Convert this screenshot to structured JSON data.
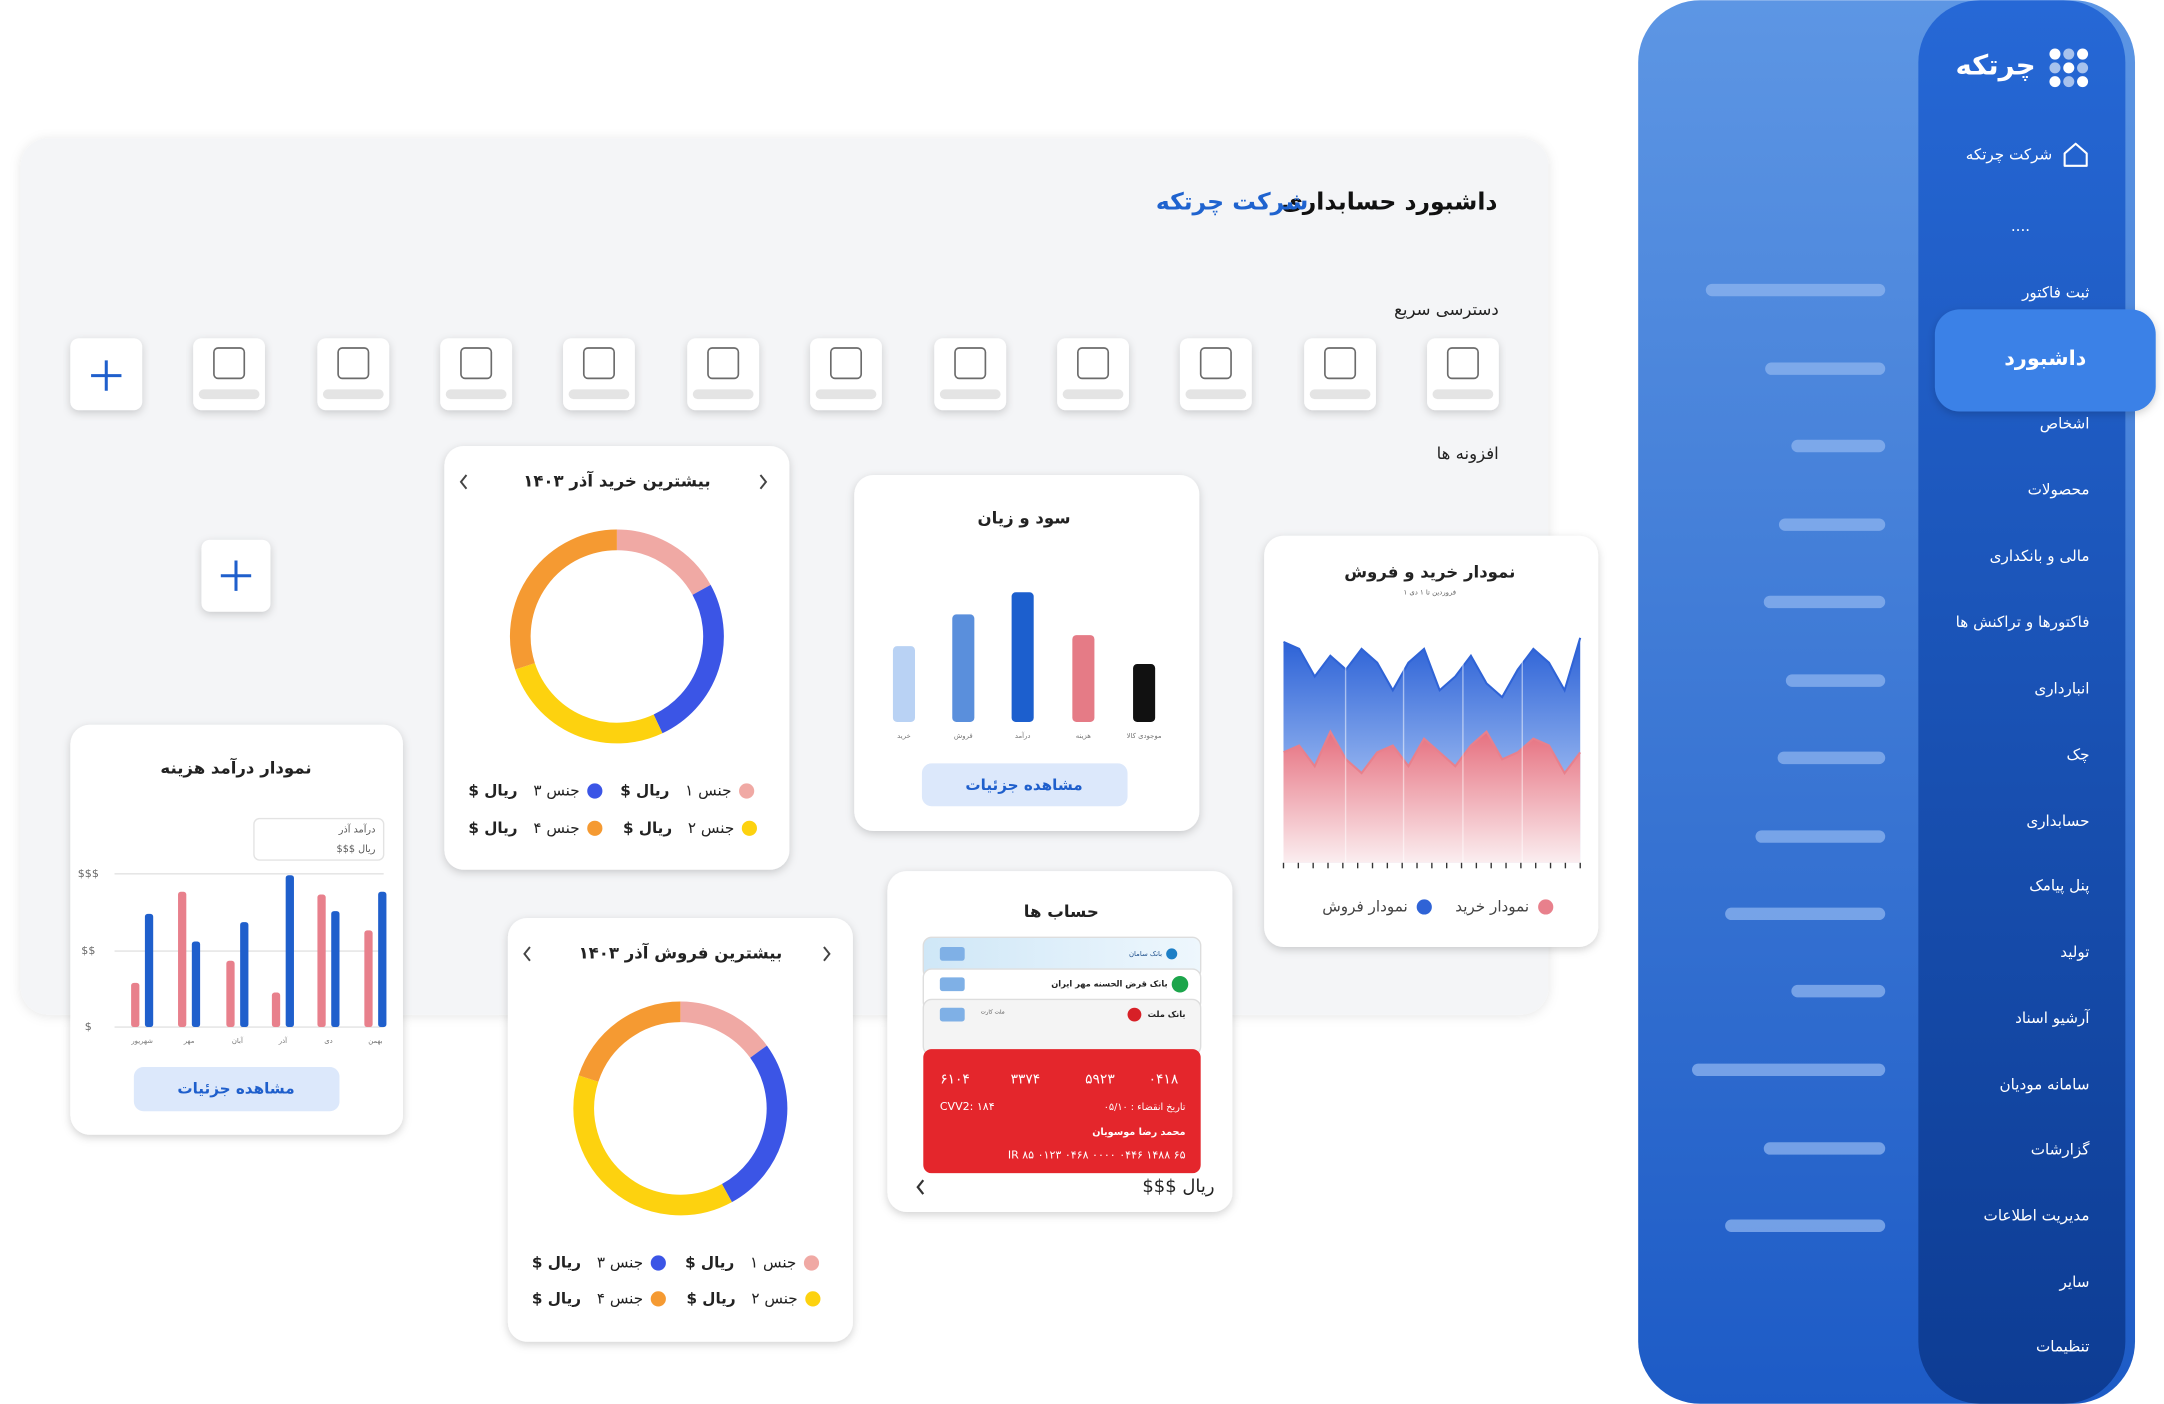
{
  "sidebar": {
    "brand": "چرتکه",
    "company": "شرکت چرتکه",
    "more": "....",
    "menu": [
      "ثبت فاکتور",
      "داشبورد",
      "اشخاص",
      "محصولات",
      "مالی و بانکداری",
      "فاکتورها و تراکنش ها",
      "انبارداری",
      "چک",
      "حسابداری",
      "پنل پیامک",
      "تولید",
      "آرشیو اسناد",
      "سامانه مودیان",
      "گزارشات",
      "مدیریت اطلاعات",
      "سایر",
      "تنظیمات"
    ],
    "active": 1
  },
  "header": {
    "title": "داشبورد حسابداری",
    "company": "شرکت چرتکه",
    "quick_access": "دسترسی سریع",
    "widgets": "افزونه ها"
  },
  "cards": {
    "top_buys": {
      "title": "بیشترین خرید آذر ۱۴۰۳",
      "segments": [
        {
          "name": "جنس ۱",
          "amount": "$ ریال",
          "color": "#f0a9a4",
          "value": 17
        },
        {
          "name": "جنس ۳",
          "amount": "$ ریال",
          "color": "#3b55e6",
          "value": 26
        },
        {
          "name": "جنس ۲",
          "amount": "$ ریال",
          "color": "#fdd20f",
          "value": 27
        },
        {
          "name": "جنس ۴",
          "amount": "$ ریال",
          "color": "#f59a32",
          "value": 30
        }
      ]
    },
    "top_sales": {
      "title": "بیشترین فروش آذر ۱۴۰۳",
      "segments": [
        {
          "name": "جنس ۱",
          "amount": "$ ریال",
          "color": "#f0a9a4",
          "value": 15
        },
        {
          "name": "جنس ۳",
          "amount": "$ ریال",
          "color": "#3b55e6",
          "value": 27
        },
        {
          "name": "جنس ۲",
          "amount": "$ ریال",
          "color": "#fdd20f",
          "value": 38
        },
        {
          "name": "جنس ۴",
          "amount": "$ ریال",
          "color": "#f59a32",
          "value": 20
        }
      ]
    },
    "profit_loss": {
      "title": "سود و زیان",
      "categories": [
        "خرید",
        "فروش",
        "درآمد",
        "هزینه",
        "موجودی کالا"
      ],
      "values": [
        55,
        78,
        94,
        63,
        42
      ],
      "colors": [
        "#b9d2f4",
        "#5a8fdc",
        "#1c5fce",
        "#e57b86",
        "#111111"
      ],
      "button": "مشاهده جزئیات"
    },
    "buy_sell": {
      "title": "نمودار خرید و فروش",
      "subtitle": "۱ فروردین تا ۱ دی",
      "series": [
        {
          "name": "نمودار فروش",
          "color": "#2f63d6",
          "values": [
            160,
            155,
            135,
            150,
            140,
            155,
            145,
            125,
            145,
            155,
            125,
            135,
            150,
            130,
            120,
            140,
            155,
            145,
            125,
            163
          ]
        },
        {
          "name": "نمودار خرید",
          "color": "#e8808c",
          "values": [
            80,
            85,
            70,
            95,
            75,
            65,
            80,
            85,
            70,
            90,
            80,
            70,
            85,
            95,
            75,
            80,
            90,
            85,
            65,
            80
          ]
        }
      ]
    },
    "accounts": {
      "title": "حساب ها",
      "banks": [
        "بانک سامان",
        "بانک قرض الحسنه مهر ایران",
        "بانک ملت",
        "ملت کارت"
      ],
      "card": {
        "number": [
          "۶۱۰۴",
          "۳۳۷۴",
          "۵۹۲۳",
          "۰۴۱۸"
        ],
        "cvv": "CVV2: ۱۸۴",
        "expiry": "تاریخ انقضاء : ۰۵/۱۰",
        "holder": "محمد رضا موسویان",
        "iban": "IR ۸۵ ۰۱۲۳ ۰۴۶۸ ۰۰۰۰ ۰۴۴۶ ۱۴۸۸ ۶۵"
      },
      "balance": "$$$ ریال"
    },
    "income_expense": {
      "title": "نمودار درآمد هزینه",
      "tooltip": {
        "label": "درآمد آذر",
        "value": "$$$ ریال"
      },
      "y_labels": [
        "$$$",
        "$$",
        "$"
      ],
      "categories": [
        "شهریور",
        "مهر",
        "آبان",
        "آذر",
        "دی",
        "بهمن"
      ],
      "series": [
        {
          "color": "#e8808c",
          "values": [
            32,
            98,
            48,
            25,
            96,
            70
          ]
        },
        {
          "color": "#1f5fcc",
          "values": [
            82,
            62,
            76,
            110,
            84,
            98
          ]
        }
      ],
      "button": "مشاهده جزئیات"
    }
  }
}
